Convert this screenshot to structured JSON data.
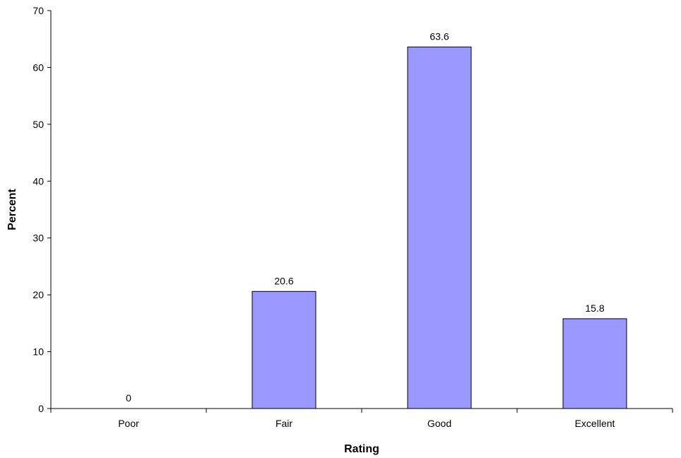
{
  "chart_data": {
    "type": "bar",
    "title": "",
    "xlabel": "Rating",
    "ylabel": "Percent",
    "categories": [
      "Poor",
      "Fair",
      "Good",
      "Excellent"
    ],
    "values": [
      0,
      20.6,
      63.6,
      15.8
    ],
    "data_labels": [
      "0",
      "20.6",
      "63.6",
      "15.8"
    ],
    "ylim": [
      0,
      70
    ],
    "yticks": [
      0,
      10,
      20,
      30,
      40,
      50,
      60,
      70
    ],
    "grid": false,
    "legend": "none",
    "bar_color": "#9999ff",
    "bar_edge_color": "#000000"
  }
}
